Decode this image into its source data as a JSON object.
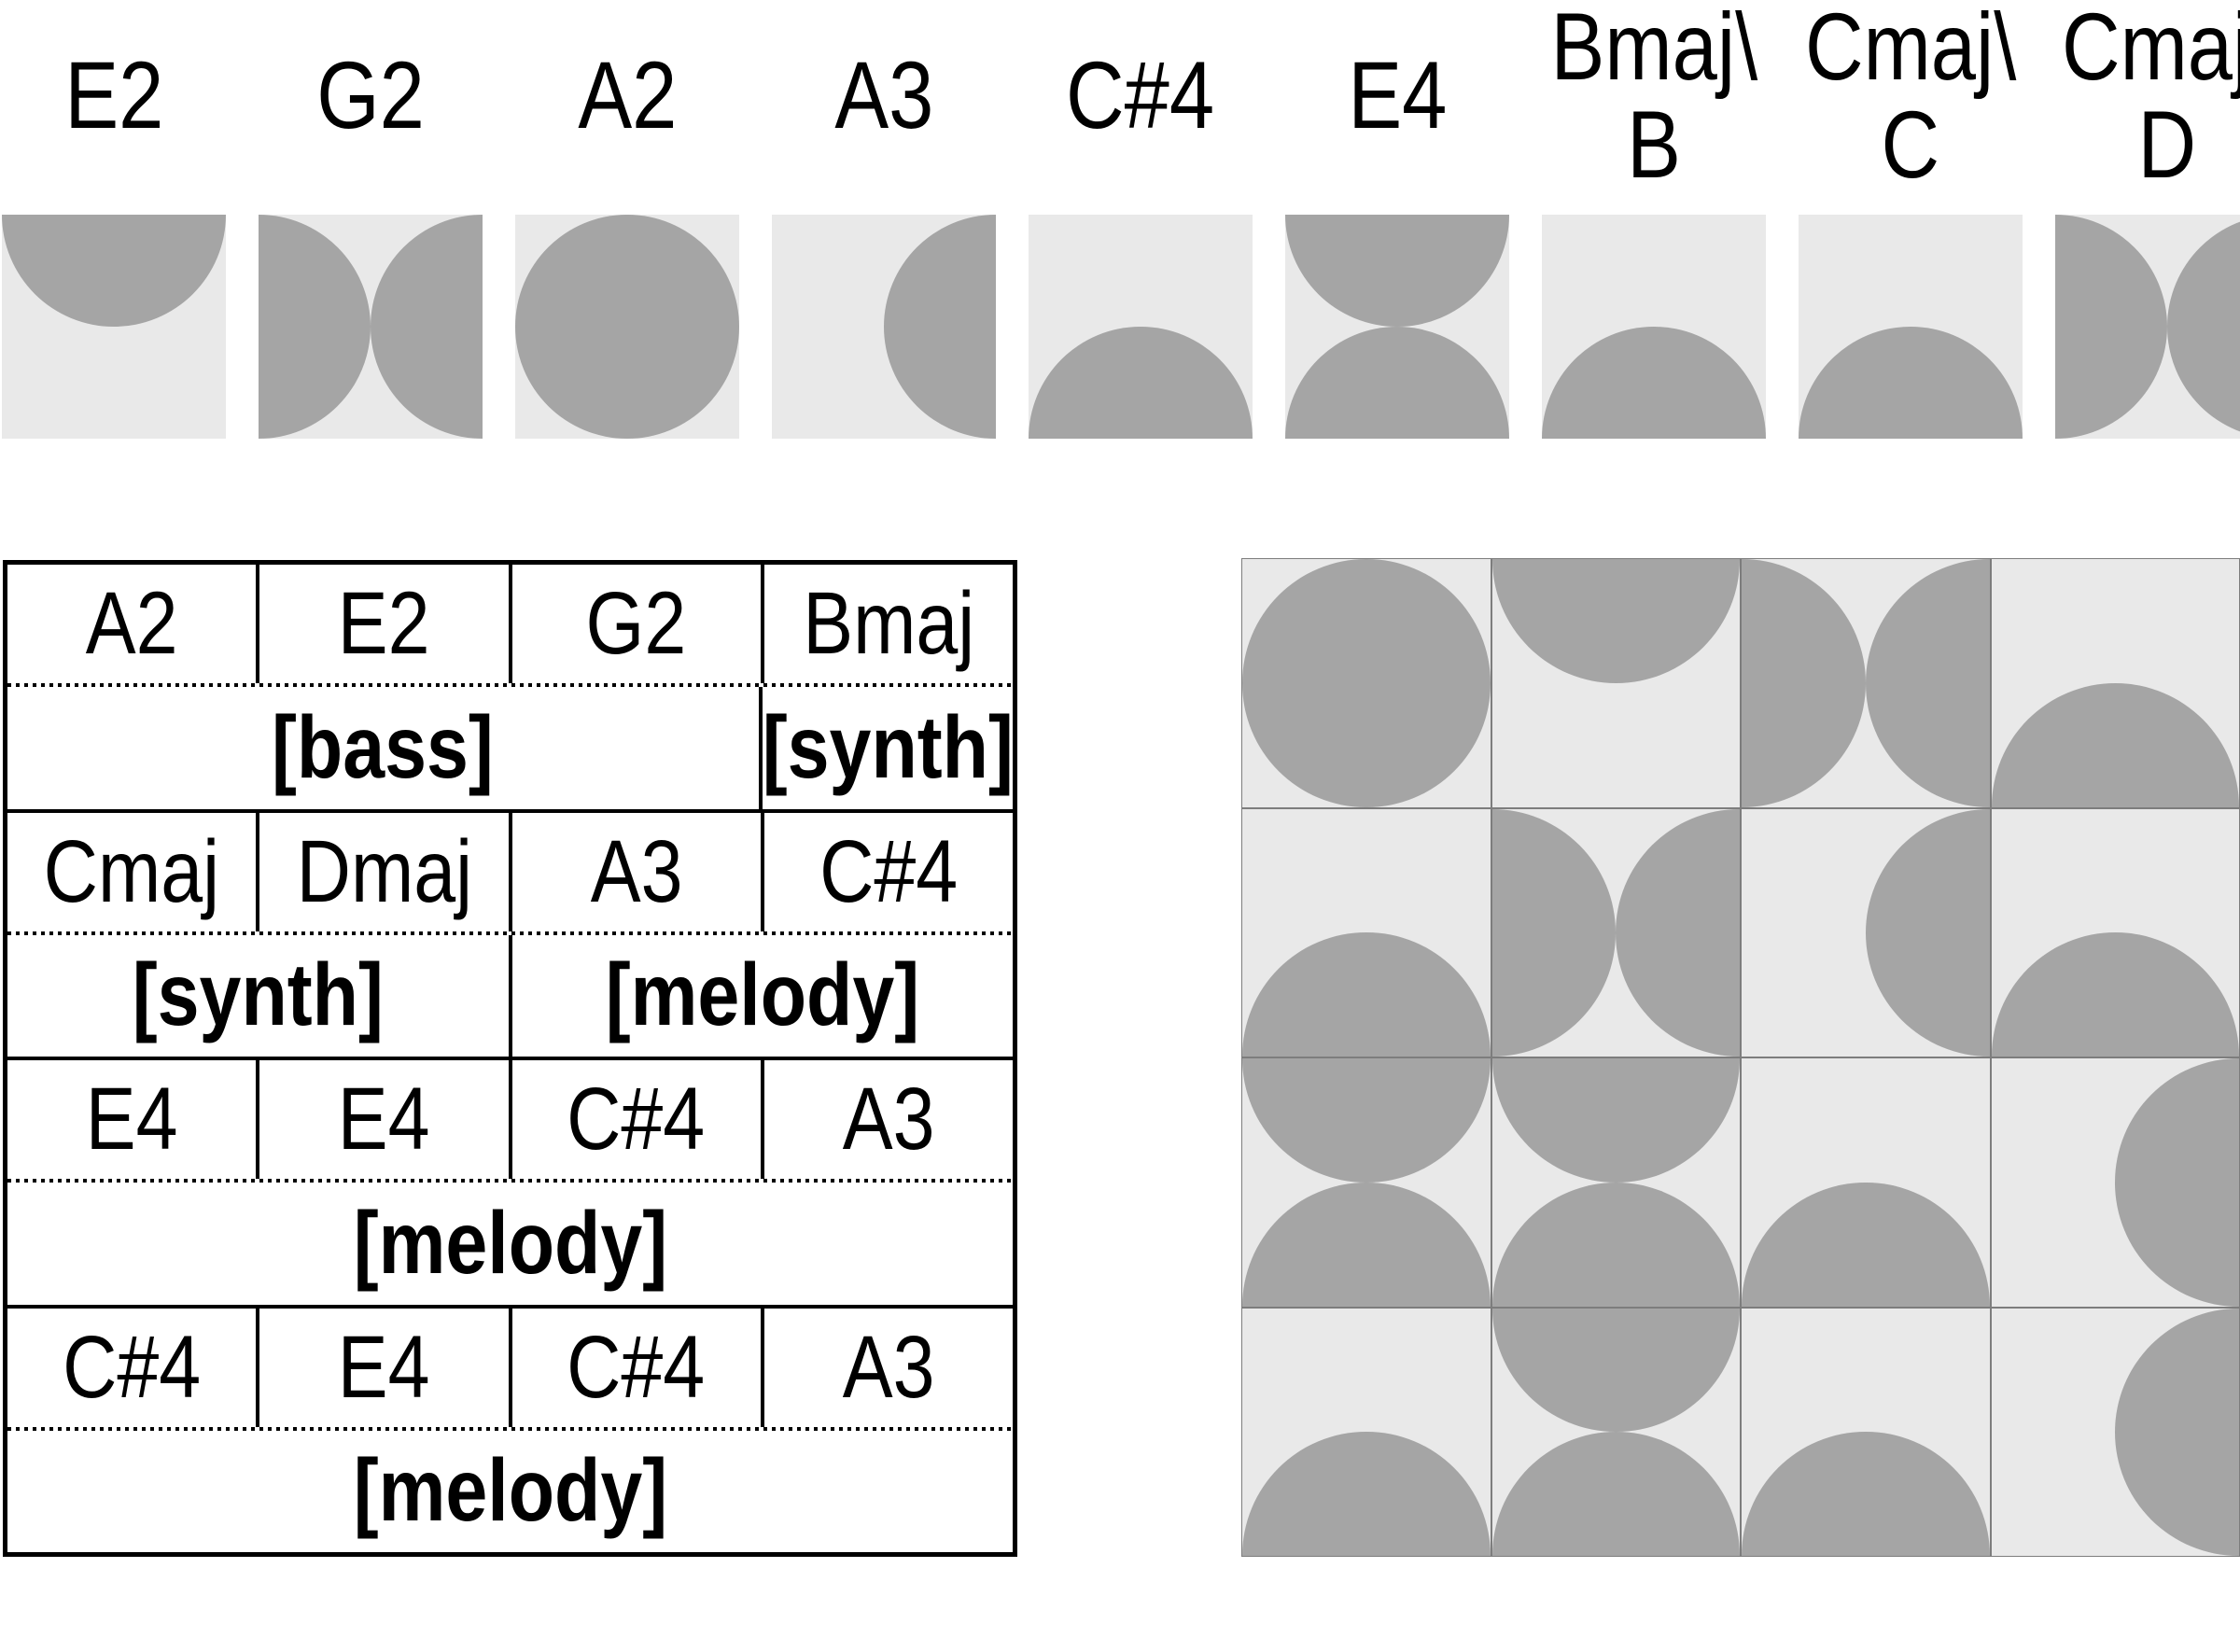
{
  "colors": {
    "tile_background": "#e9e9e9",
    "glyph": "#a5a5a5",
    "grid_line": "#7d7d7d",
    "table_line": "#000000",
    "text": "#000000"
  },
  "legend": {
    "items": [
      {
        "label": "E2",
        "glyph": "semicircle-top"
      },
      {
        "label": "G2",
        "glyph": "bowtie-horizontal"
      },
      {
        "label": "A2",
        "glyph": "circle"
      },
      {
        "label": "A3",
        "glyph": "semicircle-right"
      },
      {
        "label": "C#4",
        "glyph": "semicircle-bottom"
      },
      {
        "label": "E4",
        "glyph": "bowtie-vertical"
      },
      {
        "label": "Bmaj\\",
        "label2": "B",
        "glyph": "semicircle-bottom"
      },
      {
        "label": "Cmaj\\",
        "label2": "C",
        "glyph": "semicircle-bottom"
      },
      {
        "label": "Cmaj\\",
        "label2": "D",
        "glyph": "bowtie-horizontal"
      }
    ]
  },
  "table": {
    "groups": [
      {
        "notes": [
          "A2",
          "E2",
          "G2",
          "Bmaj"
        ],
        "labels": [
          {
            "text": "[bass]",
            "span": 3
          },
          {
            "text": "[synth]",
            "span": 1
          }
        ]
      },
      {
        "notes": [
          "Cmaj",
          "Dmaj",
          "A3",
          "C#4"
        ],
        "labels": [
          {
            "text": "[synth]",
            "span": 2
          },
          {
            "text": "[melody]",
            "span": 2
          }
        ]
      },
      {
        "notes": [
          "E4",
          "E4",
          "C#4",
          "A3"
        ],
        "labels": [
          {
            "text": "[melody]",
            "span": 4
          }
        ]
      },
      {
        "notes": [
          "C#4",
          "E4",
          "C#4",
          "A3"
        ],
        "labels": [
          {
            "text": "[melody]",
            "span": 4
          }
        ]
      }
    ]
  },
  "grid": {
    "rows": [
      [
        "circle",
        "semicircle-top",
        "bowtie-horizontal",
        "semicircle-bottom"
      ],
      [
        "semicircle-bottom",
        "bowtie-horizontal",
        "semicircle-right",
        "semicircle-bottom"
      ],
      [
        "bowtie-vertical",
        "bowtie-vertical",
        "semicircle-bottom",
        "semicircle-right"
      ],
      [
        "semicircle-bottom",
        "bowtie-vertical",
        "semicircle-bottom",
        "semicircle-right"
      ]
    ]
  }
}
